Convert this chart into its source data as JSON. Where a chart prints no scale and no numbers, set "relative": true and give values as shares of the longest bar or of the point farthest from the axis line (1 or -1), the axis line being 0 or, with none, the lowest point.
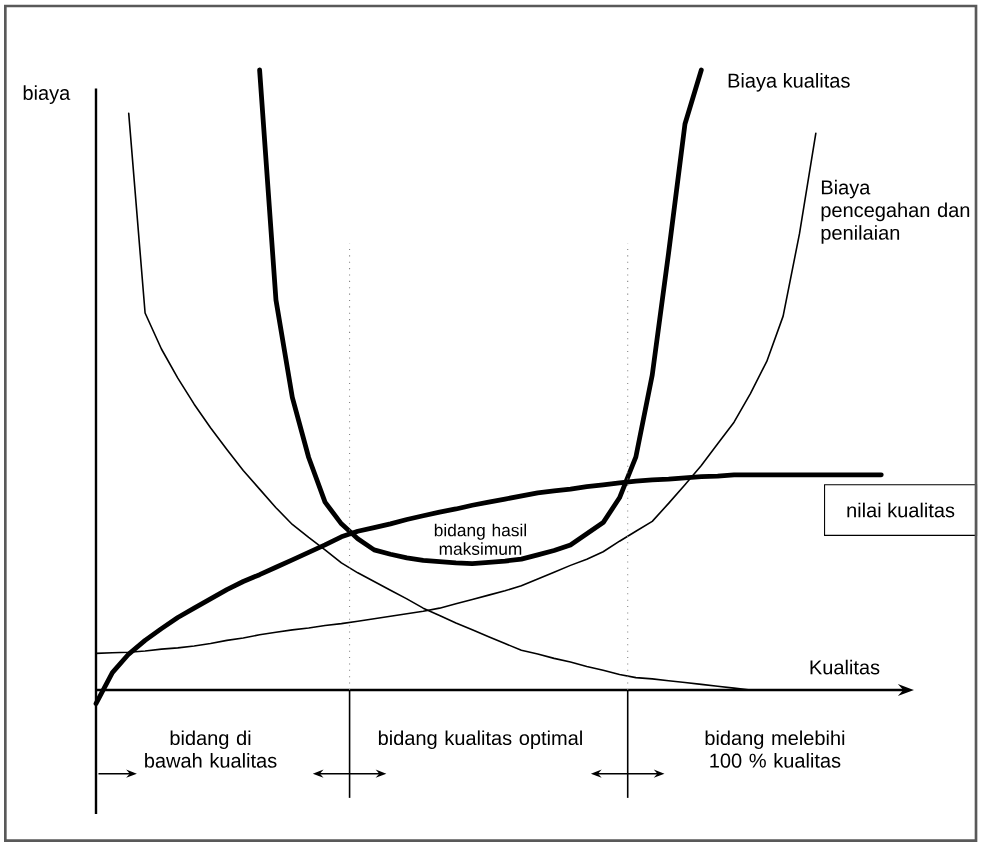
{
  "chart_data": {
    "type": "line",
    "relative": true,
    "xlabel": "Kualitas",
    "ylabel": "biaya",
    "marker": "none",
    "line_style": "solid",
    "categories": [
      null,
      null,
      null,
      null,
      null,
      null,
      null,
      null,
      null,
      null,
      null,
      null,
      null,
      null,
      null,
      null,
      null,
      null,
      null,
      null,
      null,
      null,
      null,
      null,
      null,
      null,
      null,
      null,
      null,
      null,
      null,
      null,
      null,
      null,
      null,
      null,
      null,
      null,
      null,
      null,
      null,
      null,
      null,
      null,
      null,
      null,
      null,
      null,
      null,
      null,
      null
    ],
    "series": [
      {
        "name": "Biaya kualitas",
        "color": "#000000",
        "values": [
          null,
          null,
          null,
          null,
          null,
          null,
          null,
          null,
          null,
          null,
          1.0,
          0.629,
          0.472,
          0.375,
          0.303,
          0.268,
          0.244,
          0.226,
          0.219,
          0.213,
          0.209,
          0.207,
          0.205,
          0.204,
          0.206,
          0.208,
          0.211,
          0.218,
          0.225,
          0.234,
          0.252,
          0.27,
          0.31,
          0.376,
          0.508,
          0.705,
          0.913,
          1.0,
          null,
          null,
          null,
          null,
          null,
          null,
          null,
          null,
          null,
          null,
          null,
          null,
          null
        ]
      },
      {
        "color": "#000000",
        "values": [
          null,
          null,
          0.93,
          0.608,
          0.55,
          0.503,
          0.461,
          0.423,
          0.388,
          0.354,
          0.324,
          0.294,
          0.267,
          0.246,
          0.226,
          0.205,
          0.189,
          0.175,
          0.161,
          0.147,
          0.132,
          0.12,
          0.108,
          0.097,
          0.086,
          0.075,
          0.064,
          0.058,
          0.051,
          0.045,
          0.038,
          0.032,
          0.025,
          0.02,
          0.018,
          0.015,
          0.012,
          0.009,
          0.006,
          0.003,
          0.0,
          null,
          null,
          null,
          null,
          null,
          null,
          null,
          null,
          null,
          null
        ]
      },
      {
        "name": "Biaya pencegahan dan penilaian",
        "color": "#000000",
        "values": [
          0.059,
          0.06,
          0.061,
          0.063,
          0.066,
          0.068,
          0.071,
          0.075,
          0.08,
          0.084,
          0.089,
          0.093,
          0.097,
          0.1,
          0.104,
          0.107,
          0.111,
          0.115,
          0.119,
          0.123,
          0.127,
          0.132,
          0.139,
          0.146,
          0.153,
          0.16,
          0.168,
          0.179,
          0.19,
          0.201,
          0.211,
          0.223,
          0.24,
          0.256,
          0.272,
          0.301,
          0.331,
          0.362,
          0.397,
          0.432,
          0.478,
          0.53,
          0.603,
          0.736,
          0.898,
          null,
          null,
          null,
          null,
          null,
          null
        ]
      },
      {
        "name": "nilai kualitas",
        "color": "#000000",
        "values": [
          -0.022,
          0.028,
          0.058,
          0.08,
          0.099,
          0.117,
          0.132,
          0.147,
          0.162,
          0.175,
          0.186,
          0.198,
          0.21,
          0.222,
          0.234,
          0.247,
          0.256,
          0.262,
          0.268,
          0.275,
          0.281,
          0.287,
          0.292,
          0.298,
          0.303,
          0.308,
          0.313,
          0.318,
          0.321,
          0.324,
          0.328,
          0.331,
          0.334,
          0.337,
          0.339,
          0.34,
          0.342,
          0.344,
          0.345,
          0.347,
          0.347,
          0.347,
          0.347,
          0.347,
          0.347,
          0.347,
          0.347,
          0.347,
          0.347,
          null,
          null
        ]
      }
    ],
    "annotations": [
      "bidang hasil maksimum",
      "bidang di bawah kualitas",
      "bidang kualitas optimal",
      "bidang melebihi 100 % kualitas"
    ]
  }
}
